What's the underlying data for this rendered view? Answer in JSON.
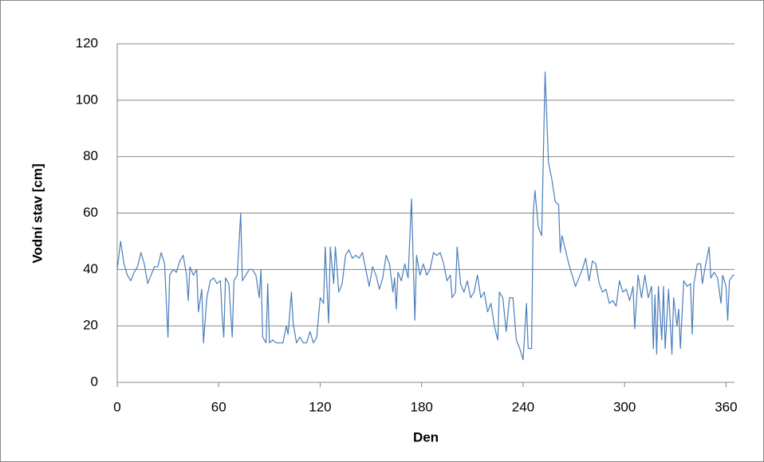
{
  "chart_data": {
    "type": "line",
    "x_label": "Den",
    "y_label": "Vodní stav [cm]",
    "color": "#4a7ebb",
    "grid": true,
    "xlim": [
      0,
      365
    ],
    "ylim": [
      0,
      120
    ],
    "xticks": [
      0,
      60,
      120,
      180,
      240,
      300,
      360
    ],
    "yticks": [
      0,
      20,
      40,
      60,
      80,
      100,
      120
    ],
    "x": [
      0,
      2,
      4,
      6,
      8,
      10,
      12,
      14,
      16,
      18,
      20,
      22,
      24,
      26,
      28,
      30,
      31,
      33,
      35,
      37,
      39,
      41,
      42,
      43,
      45,
      47,
      48,
      50,
      51,
      53,
      55,
      57,
      59,
      61,
      62,
      63,
      64,
      66,
      68,
      69,
      71,
      73,
      74,
      76,
      78,
      80,
      82,
      84,
      85,
      86,
      88,
      89,
      90,
      92,
      94,
      96,
      98,
      100,
      101,
      103,
      104,
      106,
      108,
      110,
      112,
      114,
      116,
      118,
      120,
      122,
      123,
      125,
      126,
      128,
      129,
      131,
      133,
      135,
      137,
      139,
      141,
      143,
      145,
      147,
      149,
      151,
      153,
      155,
      157,
      159,
      161,
      163,
      164,
      165,
      166,
      168,
      170,
      172,
      174,
      176,
      177,
      179,
      181,
      183,
      185,
      187,
      189,
      191,
      193,
      195,
      197,
      198,
      200,
      201,
      203,
      205,
      207,
      209,
      211,
      213,
      215,
      217,
      219,
      221,
      223,
      225,
      226,
      228,
      230,
      232,
      234,
      236,
      238,
      240,
      242,
      243,
      245,
      246,
      247,
      249,
      251,
      253,
      255,
      257,
      259,
      261,
      262,
      263,
      265,
      267,
      269,
      271,
      273,
      275,
      277,
      279,
      281,
      283,
      285,
      287,
      289,
      291,
      293,
      295,
      297,
      299,
      301,
      303,
      305,
      306,
      308,
      310,
      312,
      314,
      316,
      317,
      318,
      319,
      320,
      322,
      323,
      324,
      326,
      328,
      329,
      331,
      332,
      333,
      335,
      337,
      339,
      340,
      341,
      343,
      345,
      346,
      348,
      350,
      351,
      353,
      355,
      357,
      358,
      360,
      361,
      362,
      364,
      365
    ],
    "values": [
      40,
      50,
      42,
      38,
      36,
      39,
      41,
      46,
      42,
      35,
      38,
      41,
      41,
      46,
      42,
      16,
      38,
      40,
      39,
      43,
      45,
      38,
      29,
      41,
      38,
      40,
      25,
      33,
      14,
      30,
      36,
      37,
      35,
      36,
      24,
      16,
      37,
      35,
      16,
      36,
      38,
      60,
      36,
      38,
      40,
      40,
      38,
      30,
      40,
      16,
      14,
      35,
      14,
      15,
      14,
      14,
      14,
      20,
      17,
      32,
      21,
      14,
      16,
      14,
      14,
      18,
      14,
      16,
      30,
      28,
      48,
      21,
      48,
      35,
      48,
      32,
      35,
      45,
      47,
      44,
      45,
      44,
      46,
      40,
      34,
      41,
      38,
      33,
      37,
      45,
      42,
      32,
      37,
      26,
      39,
      36,
      42,
      37,
      65,
      22,
      45,
      38,
      42,
      38,
      40,
      46,
      45,
      46,
      42,
      36,
      38,
      30,
      32,
      48,
      35,
      32,
      36,
      30,
      32,
      38,
      30,
      32,
      25,
      28,
      20,
      15,
      32,
      30,
      18,
      30,
      30,
      15,
      12,
      8,
      28,
      12,
      12,
      60,
      68,
      55,
      52,
      110,
      78,
      72,
      64,
      63,
      46,
      52,
      47,
      42,
      38,
      34,
      37,
      40,
      44,
      36,
      43,
      42,
      35,
      32,
      33,
      28,
      29,
      27,
      36,
      32,
      33,
      29,
      34,
      19,
      38,
      30,
      38,
      30,
      34,
      12,
      31,
      10,
      34,
      15,
      34,
      12,
      33,
      10,
      30,
      20,
      26,
      12,
      36,
      34,
      35,
      17,
      35,
      42,
      42,
      35,
      42,
      48,
      37,
      39,
      37,
      28,
      38,
      34,
      22,
      36,
      38,
      38
    ]
  }
}
